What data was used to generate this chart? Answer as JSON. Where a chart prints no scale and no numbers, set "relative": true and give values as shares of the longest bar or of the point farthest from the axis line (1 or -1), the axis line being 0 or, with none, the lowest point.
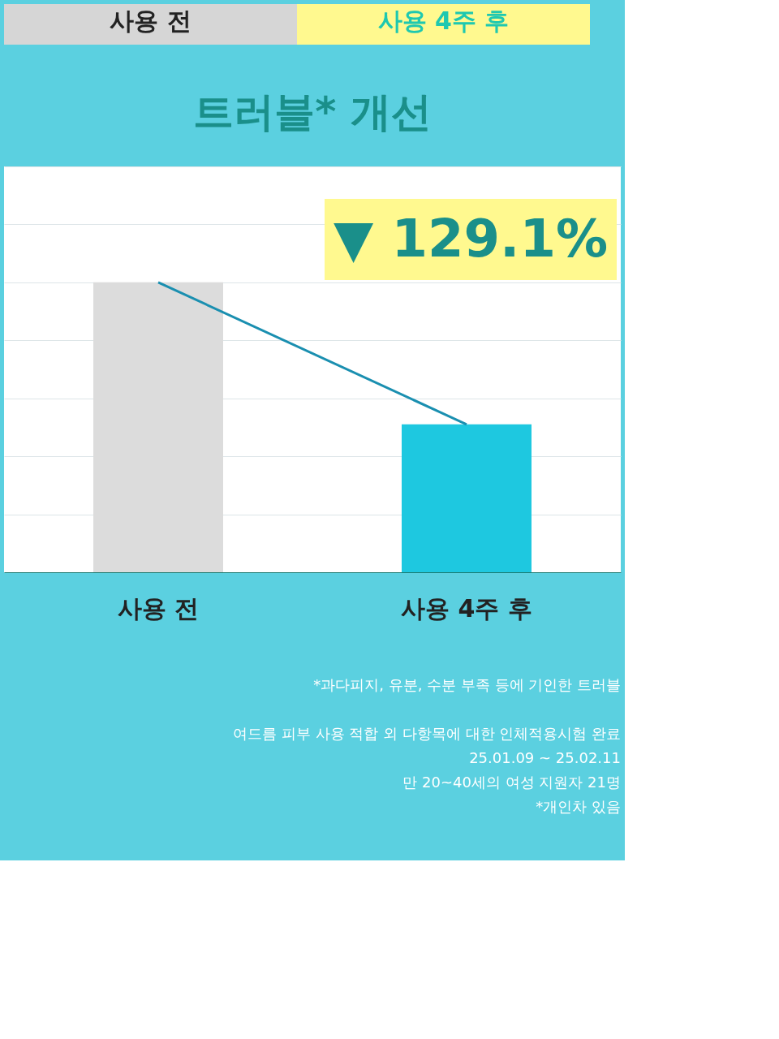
{
  "chart_data": {
    "type": "bar",
    "title": "트러블* 개선",
    "categories": [
      "사용 전",
      "사용 4주 후"
    ],
    "values": [
      1,
      0.51
    ],
    "colors": [
      "#dcdcdc",
      "#1ec8e0"
    ],
    "relative": true,
    "grid": "y",
    "annotations": [
      "사용 전",
      "사용 4주 후",
      "▼ 129.1%",
      "*과다피지, 유분, 수분 부족 등에 기인한 트러블",
      "여드름 피부 사용 적합 외 다항목에 대한 인체적용시험 완료",
      "25.01.09 ~ 25.02.11",
      "만 20~40세의 여성 지원자 21명",
      "*개인차 있음"
    ]
  }
}
